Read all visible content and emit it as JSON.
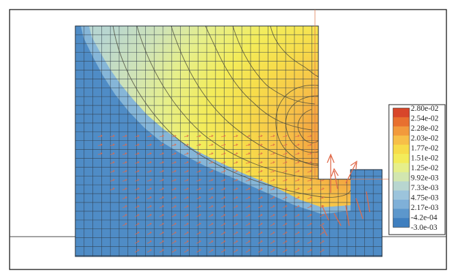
{
  "figure": {
    "legend": {
      "colors": [
        "#d8462a",
        "#e8702f",
        "#f29a3c",
        "#f7bf48",
        "#f7dc4a",
        "#f3ec5a",
        "#e6ef8a",
        "#d2e6b0",
        "#b8d6d0",
        "#9cc4dc",
        "#7fb0d8",
        "#5c97cc",
        "#3f7fbf"
      ],
      "labels": [
        "2.80e-02",
        "2.54e-02",
        "2.28e-02",
        "2.03e-02",
        "1.77e-02",
        "1.51e-02",
        "1.25e-02",
        "9.92e-03",
        "7.33e-03",
        "4.75e-03",
        "2.17e-03",
        "-4.2e-04",
        "-3.0e-03"
      ]
    }
  }
}
